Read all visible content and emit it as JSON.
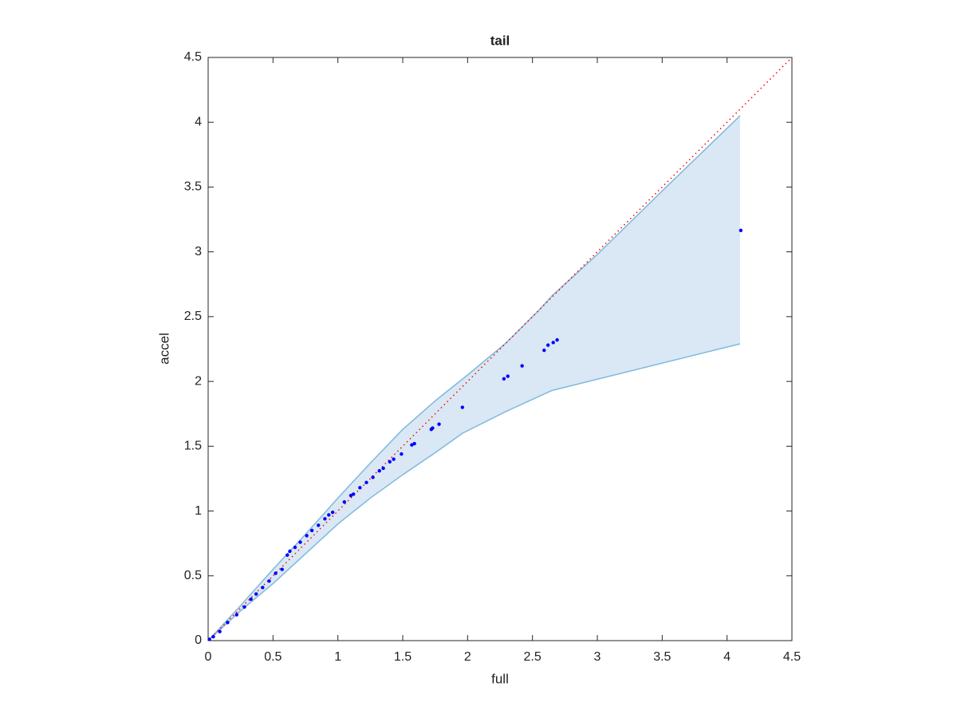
{
  "chart_data": {
    "type": "scatter",
    "title": "tail",
    "xlabel": "full",
    "ylabel": "accel",
    "xlim": [
      0,
      4.5
    ],
    "ylim": [
      0,
      4.5
    ],
    "xticks": [
      0,
      0.5,
      1,
      1.5,
      2,
      2.5,
      3,
      3.5,
      4,
      4.5
    ],
    "yticks": [
      0,
      0.5,
      1,
      1.5,
      2,
      2.5,
      3,
      3.5,
      4,
      4.5
    ],
    "grid": false,
    "series": [
      {
        "color": "#0000ff",
        "x": [
          4.106,
          2.69,
          2.66,
          2.62,
          2.59,
          2.42,
          2.31,
          2.28,
          1.96,
          1.78,
          1.73,
          1.72,
          1.59,
          1.57,
          1.49,
          1.43,
          1.4,
          1.35,
          1.32,
          1.27,
          1.22,
          1.17,
          1.12,
          1.1,
          1.05,
          0.96,
          0.93,
          0.9,
          0.85,
          0.8,
          0.76,
          0.71,
          0.67,
          0.63,
          0.61,
          0.57,
          0.52,
          0.47,
          0.42,
          0.37,
          0.33,
          0.28,
          0.22,
          0.15,
          0.09,
          0.04,
          0.01
        ],
        "values": [
          3.165,
          2.32,
          2.3,
          2.28,
          2.24,
          2.12,
          2.04,
          2.02,
          1.8,
          1.67,
          1.64,
          1.63,
          1.52,
          1.51,
          1.44,
          1.4,
          1.38,
          1.33,
          1.31,
          1.26,
          1.22,
          1.18,
          1.13,
          1.12,
          1.07,
          0.99,
          0.97,
          0.94,
          0.89,
          0.85,
          0.81,
          0.76,
          0.72,
          0.69,
          0.66,
          0.55,
          0.52,
          0.46,
          0.41,
          0.36,
          0.32,
          0.26,
          0.2,
          0.14,
          0.07,
          0.03,
          0.01
        ]
      }
    ],
    "band": {
      "color": "#7fb8de",
      "fill": "#d9e8f4",
      "x_upper": [
        0,
        0.25,
        0.5,
        0.75,
        1,
        1.25,
        1.5,
        1.75,
        2,
        2.3,
        2.55,
        2.65,
        3,
        3.5,
        4.1
      ],
      "upper": [
        0,
        0.27,
        0.55,
        0.82,
        1.1,
        1.37,
        1.63,
        1.85,
        2.05,
        2.3,
        2.55,
        2.66,
        2.98,
        3.47,
        4.05
      ],
      "x_lower": [
        0,
        0.25,
        0.5,
        0.75,
        1,
        1.25,
        1.5,
        1.75,
        1.96,
        2.3,
        2.65,
        4.1
      ],
      "lower": [
        0,
        0.23,
        0.44,
        0.67,
        0.9,
        1.1,
        1.28,
        1.45,
        1.6,
        1.77,
        1.93,
        2.29
      ]
    },
    "reference_line": {
      "color": "#ff0000",
      "x": [
        0,
        4.5
      ],
      "values": [
        0,
        4.5
      ]
    }
  }
}
